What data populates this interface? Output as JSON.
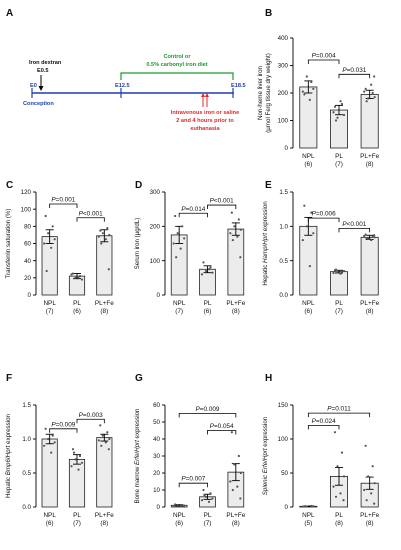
{
  "colors": {
    "bar_fill": "#ececec",
    "bar_stroke": "#222222",
    "timeline": "#1f3fb0",
    "diet": "#1a9a32",
    "treatment": "#e0282b",
    "text": "#111111",
    "dot": "#555555"
  },
  "panel_a": {
    "letter": "A",
    "iron_dextran_label": "Iron dextran",
    "iron_dextran_day": "E0.5",
    "start_label": "E0",
    "conception_label": "Conception",
    "diet_day": "E12.5",
    "end_day": "E18.5",
    "diet_line1": "Control or",
    "diet_line2": "0.5% carbonyl iron diet",
    "treatment_line1": "Intravenous iron or saline",
    "treatment_line2": "2 and 4 hours prior to",
    "treatment_line3": "euthanasia"
  },
  "chart_data": [
    {
      "id": "B",
      "type": "bar",
      "letter": "B",
      "ylabel_parts": [
        {
          "t": "Non-heme liver iron",
          "i": false
        }
      ],
      "ylabel2": "(µmol Fe/g tissue dry weight)",
      "ylim": [
        0,
        400
      ],
      "yticks": [
        0,
        100,
        200,
        300,
        400
      ],
      "categories": [
        "NPL",
        "PL",
        "PL+Fe"
      ],
      "n": [
        "(6)",
        "(7)",
        "(8)"
      ],
      "values": [
        222,
        138,
        195
      ],
      "errors": [
        22,
        17,
        15
      ],
      "dots": [
        [
          195,
          240,
          260,
          215,
          205,
          175
        ],
        [
          150,
          160,
          110,
          120,
          130,
          170,
          100
        ],
        [
          215,
          200,
          180,
          185,
          205,
          230,
          170,
          260
        ]
      ],
      "pvalues": [
        {
          "from": 0,
          "to": 1,
          "label": "P=0.004",
          "y": 320
        },
        {
          "from": 1,
          "to": 2,
          "label": "P=0.031",
          "y": 268
        }
      ]
    },
    {
      "id": "C",
      "type": "bar",
      "letter": "C",
      "ylabel_parts": [
        {
          "t": "Transferrin saturation (%)",
          "i": false
        }
      ],
      "ylim": [
        0,
        120
      ],
      "yticks": [
        0,
        20,
        40,
        60,
        80,
        100,
        120
      ],
      "categories": [
        "NPL",
        "PL",
        "PL+Fe"
      ],
      "n": [
        "(7)",
        "(6)",
        "(8)"
      ],
      "values": [
        68,
        22,
        69
      ],
      "errors": [
        8,
        3,
        7
      ],
      "dots": [
        [
          92,
          80,
          72,
          65,
          60,
          55,
          28
        ],
        [
          25,
          22,
          20,
          18,
          24,
          20
        ],
        [
          75,
          78,
          72,
          70,
          68,
          65,
          60,
          30
        ]
      ],
      "pvalues": [
        {
          "from": 0,
          "to": 1,
          "label": "P=0.001",
          "y": 106
        },
        {
          "from": 1,
          "to": 2,
          "label": "P<0.001",
          "y": 90
        }
      ]
    },
    {
      "id": "D",
      "type": "bar",
      "letter": "D",
      "ylabel_parts": [
        {
          "t": "Serum iron (µg/dL)",
          "i": false
        }
      ],
      "ylim": [
        0,
        300
      ],
      "yticks": [
        0,
        100,
        200,
        300
      ],
      "categories": [
        "NPL",
        "PL",
        "PL+Fe"
      ],
      "n": [
        "(7)",
        "(6)",
        "(8)"
      ],
      "values": [
        175,
        75,
        192
      ],
      "errors": [
        25,
        10,
        18
      ],
      "dots": [
        [
          230,
          200,
          180,
          165,
          150,
          135,
          110
        ],
        [
          95,
          80,
          70,
          65,
          60,
          75
        ],
        [
          240,
          220,
          200,
          190,
          180,
          170,
          160,
          110
        ]
      ],
      "pvalues": [
        {
          "from": 0,
          "to": 1,
          "label": "P=0.014",
          "y": 238
        },
        {
          "from": 1,
          "to": 2,
          "label": "P<0.001",
          "y": 262
        }
      ]
    },
    {
      "id": "E",
      "type": "bar",
      "letter": "E",
      "ylabel_parts": [
        {
          "t": "Hepatic ",
          "i": false
        },
        {
          "t": "Hamp",
          "i": true
        },
        {
          "t": "/",
          "i": false
        },
        {
          "t": "Hprt",
          "i": true
        },
        {
          "t": " expression",
          "i": false
        }
      ],
      "ylim": [
        0,
        1.5
      ],
      "yticks": [
        0.0,
        0.5,
        1.0,
        1.5
      ],
      "categories": [
        "NPL",
        "PL",
        "PL+Fe"
      ],
      "n": [
        "(6)",
        "(7)",
        "(8)"
      ],
      "values": [
        1.0,
        0.34,
        0.84
      ],
      "errors": [
        0.13,
        0.02,
        0.03
      ],
      "dots": [
        [
          1.3,
          1.2,
          1.0,
          0.9,
          0.8,
          0.42
        ],
        [
          0.36,
          0.34,
          0.33,
          0.35,
          0.32,
          0.31,
          0.37
        ],
        [
          0.88,
          0.85,
          0.82,
          0.84,
          0.86,
          0.8,
          0.83,
          0.87
        ]
      ],
      "pvalues": [
        {
          "from": 0,
          "to": 1,
          "label": "P=0.006",
          "y": 1.12
        },
        {
          "from": 1,
          "to": 2,
          "label": "P<0.001",
          "y": 0.97
        }
      ]
    },
    {
      "id": "F",
      "type": "bar",
      "letter": "F",
      "ylabel_parts": [
        {
          "t": "Hepatic ",
          "i": false
        },
        {
          "t": "Bmp6",
          "i": true
        },
        {
          "t": "/",
          "i": false
        },
        {
          "t": "Hprt",
          "i": true
        },
        {
          "t": " expression",
          "i": false
        }
      ],
      "ylim": [
        0,
        1.5
      ],
      "yticks": [
        0.0,
        0.5,
        1.0,
        1.5
      ],
      "categories": [
        "NPL",
        "PL",
        "PL+Fe"
      ],
      "n": [
        "(6)",
        "(7)",
        "(8)"
      ],
      "values": [
        1.0,
        0.7,
        1.02
      ],
      "errors": [
        0.07,
        0.07,
        0.05
      ],
      "dots": [
        [
          1.15,
          1.05,
          1.0,
          0.95,
          0.9,
          0.8
        ],
        [
          0.85,
          0.75,
          0.7,
          0.65,
          0.6,
          0.55,
          0.8
        ],
        [
          1.2,
          1.1,
          1.05,
          1.0,
          0.98,
          0.95,
          0.9,
          0.85
        ]
      ],
      "pvalues": [
        {
          "from": 0,
          "to": 1,
          "label": "P=0.009",
          "y": 1.15
        },
        {
          "from": 1,
          "to": 2,
          "label": "P=0.003",
          "y": 1.29
        }
      ]
    },
    {
      "id": "G",
      "type": "bar",
      "letter": "G",
      "ylabel_parts": [
        {
          "t": "Bone marrow ",
          "i": false
        },
        {
          "t": "Erfe",
          "i": true
        },
        {
          "t": "/",
          "i": false
        },
        {
          "t": "Hprt",
          "i": true
        },
        {
          "t": " expression",
          "i": false
        }
      ],
      "ylim": [
        0,
        60
      ],
      "yticks": [
        0,
        10,
        20,
        30,
        40,
        50,
        60
      ],
      "categories": [
        "NPL",
        "PL",
        "PL+Fe"
      ],
      "n": [
        "(6)",
        "(7)",
        "(8)"
      ],
      "values": [
        1,
        6,
        20.5
      ],
      "errors": [
        0.4,
        1.5,
        5
      ],
      "dots": [
        [
          1.5,
          1.2,
          1.0,
          0.8,
          0.6,
          0.9
        ],
        [
          10,
          8,
          6,
          5,
          4,
          3,
          7
        ],
        [
          44,
          30,
          25,
          20,
          15,
          12,
          10,
          5
        ]
      ],
      "pvalues": [
        {
          "from": 0,
          "to": 1,
          "label": "P=0.007",
          "y": 14
        },
        {
          "from": 1,
          "to": 2,
          "label": "P=0.054",
          "y": 45
        },
        {
          "from": 0,
          "to": 2,
          "label": "P=0.009",
          "y": 55
        }
      ]
    },
    {
      "id": "H",
      "type": "bar",
      "letter": "H",
      "ylabel_parts": [
        {
          "t": "Splenic ",
          "i": true
        },
        {
          "t": "Erfe",
          "i": true
        },
        {
          "t": "/",
          "i": false
        },
        {
          "t": "Hprt",
          "i": true
        },
        {
          "t": " expression",
          "i": false
        }
      ],
      "ylim": [
        0,
        150
      ],
      "yticks": [
        0,
        50,
        100,
        150
      ],
      "categories": [
        "NPL",
        "PL",
        "PL+Fe"
      ],
      "n": [
        "(5)",
        "(8)",
        "(8)"
      ],
      "values": [
        1,
        45,
        35
      ],
      "errors": [
        0.5,
        13,
        9
      ],
      "dots": [
        [
          1,
          1.5,
          0.8,
          1.2,
          0.5
        ],
        [
          110,
          80,
          60,
          45,
          30,
          20,
          15,
          10
        ],
        [
          90,
          60,
          45,
          35,
          25,
          20,
          10,
          5
        ]
      ],
      "pvalues": [
        {
          "from": 0,
          "to": 1,
          "label": "P=0.024",
          "y": 120
        },
        {
          "from": 0,
          "to": 2,
          "label": "P=0.011",
          "y": 138
        }
      ]
    }
  ]
}
